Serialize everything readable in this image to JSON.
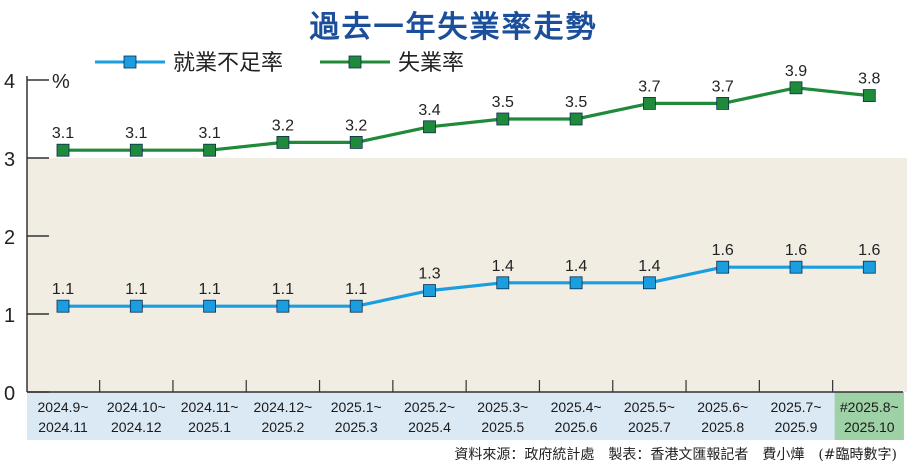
{
  "title": "過去一年失業率走勢",
  "source_note": "資料來源：政府統計處　製表：香港文匯報記者　費小燁　(#臨時數字)",
  "colors": {
    "title": "#1b4f9c",
    "underemployment": "#1a9ee0",
    "unemployment": "#1f8a3a",
    "band": "#f1ede2",
    "axis_strip": "#dbe9f5",
    "highlight_strip": "#9fd1a6"
  },
  "chart_data": {
    "type": "line",
    "title": "過去一年失業率走勢",
    "ylabel": "%",
    "ylim": [
      0,
      4
    ],
    "yticks": [
      "0",
      "1",
      "2",
      "3",
      "4"
    ],
    "categories": [
      [
        "2024.9~",
        "2024.11"
      ],
      [
        "2024.10~",
        "2024.12"
      ],
      [
        "2024.11~",
        "2025.1"
      ],
      [
        "2024.12~",
        "2025.2"
      ],
      [
        "2025.1~",
        "2025.3"
      ],
      [
        "2025.2~",
        "2025.4"
      ],
      [
        "2025.3~",
        "2025.5"
      ],
      [
        "2025.4~",
        "2025.6"
      ],
      [
        "2025.5~",
        "2025.7"
      ],
      [
        "2025.6~",
        "2025.8"
      ],
      [
        "2025.7~",
        "2025.9"
      ],
      [
        "#2025.8~",
        "2025.10"
      ]
    ],
    "highlight_category_index": 11,
    "series": [
      {
        "name": "就業不足率",
        "color": "#1a9ee0",
        "values": [
          1.1,
          1.1,
          1.1,
          1.1,
          1.1,
          1.3,
          1.4,
          1.4,
          1.4,
          1.6,
          1.6,
          1.6
        ],
        "labels": [
          "1.1",
          "1.1",
          "1.1",
          "1.1",
          "1.1",
          "1.3",
          "1.4",
          "1.4",
          "1.4",
          "1.6",
          "1.6",
          "1.6"
        ]
      },
      {
        "name": "失業率",
        "color": "#1f8a3a",
        "values": [
          3.1,
          3.1,
          3.1,
          3.2,
          3.2,
          3.4,
          3.5,
          3.5,
          3.7,
          3.7,
          3.9,
          3.8
        ],
        "labels": [
          "3.1",
          "3.1",
          "3.1",
          "3.2",
          "3.2",
          "3.4",
          "3.5",
          "3.5",
          "3.7",
          "3.7",
          "3.9",
          "3.8"
        ]
      }
    ]
  }
}
